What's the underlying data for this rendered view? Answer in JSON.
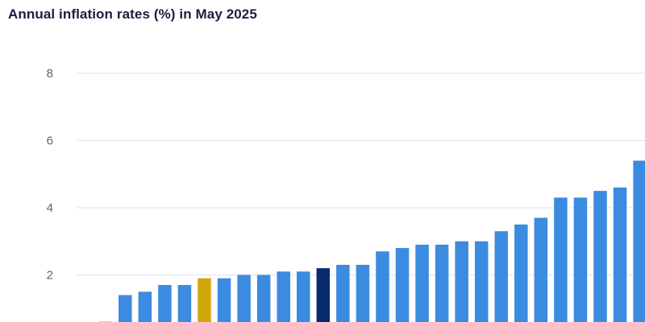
{
  "chart_data": {
    "type": "bar",
    "title": "Annual inflation rates (%) in May 2025",
    "xlabel": "",
    "ylabel": "",
    "ylim": [
      0,
      8
    ],
    "yticks": [
      2,
      4,
      6,
      8
    ],
    "grid": true,
    "values": [
      0.0,
      1.4,
      1.5,
      1.7,
      1.7,
      1.9,
      1.9,
      2.0,
      2.0,
      2.1,
      2.1,
      2.2,
      2.3,
      2.3,
      2.7,
      2.8,
      2.9,
      2.9,
      3.0,
      3.0,
      3.3,
      3.5,
      3.7,
      4.3,
      4.3,
      4.5,
      4.6,
      5.4
    ],
    "highlight": {
      "5": "gold",
      "11": "navy"
    },
    "colors": {
      "default": "#3b8be0",
      "gold": "#d1a70c",
      "navy": "#0a2a6e",
      "grid": "#dfe3f0",
      "tick": "#5f6470",
      "title": "#1b1f3b"
    }
  }
}
